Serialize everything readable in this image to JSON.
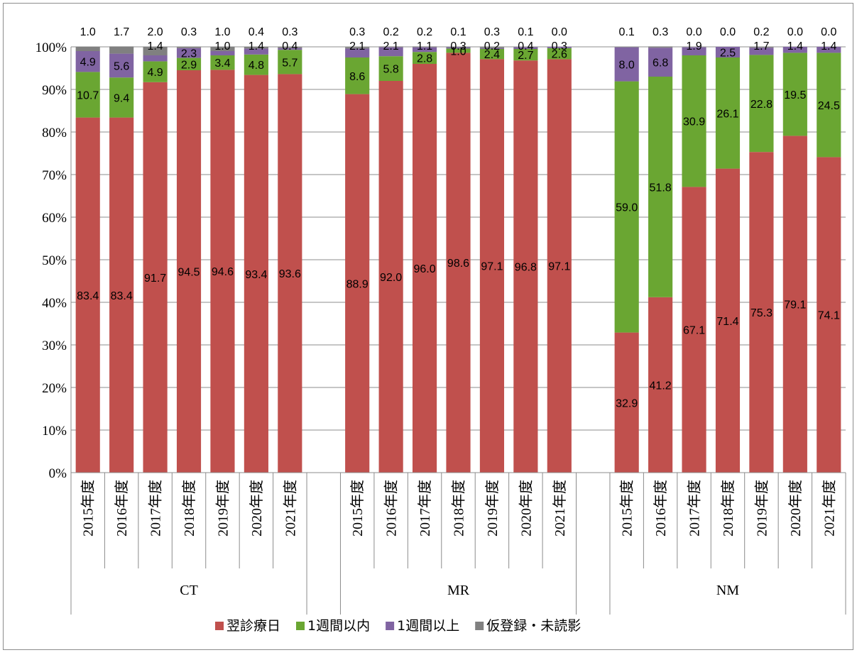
{
  "chart_data": {
    "type": "bar",
    "stacked": true,
    "percent": true,
    "title": "",
    "xlabel": "",
    "ylabel": "",
    "ylim": [
      0,
      100
    ],
    "y_ticks": [
      "0%",
      "10%",
      "20%",
      "30%",
      "40%",
      "50%",
      "60%",
      "70%",
      "80%",
      "90%",
      "100%"
    ],
    "grid": true,
    "legend_position": "bottom",
    "groups": [
      "CT",
      "MR",
      "NM"
    ],
    "categories": [
      "2015年度",
      "2016年度",
      "2017年度",
      "2018年度",
      "2019年度",
      "2020年度",
      "2021年度"
    ],
    "series": [
      {
        "name": "翌診療日",
        "color": "#c0504d",
        "values": {
          "CT": [
            83.4,
            83.4,
            91.7,
            94.5,
            94.6,
            93.4,
            93.6
          ],
          "MR": [
            88.9,
            92.0,
            96.0,
            98.6,
            97.1,
            96.8,
            97.1
          ],
          "NM": [
            32.9,
            41.2,
            67.1,
            71.4,
            75.3,
            79.1,
            74.1
          ]
        }
      },
      {
        "name": "1週間以内",
        "color": "#6aa632",
        "values": {
          "CT": [
            10.7,
            9.4,
            4.9,
            2.9,
            3.4,
            4.8,
            5.7
          ],
          "MR": [
            8.6,
            5.8,
            2.8,
            1.0,
            2.4,
            2.7,
            2.6
          ],
          "NM": [
            59.0,
            51.8,
            30.9,
            26.1,
            22.8,
            19.5,
            24.5
          ]
        }
      },
      {
        "name": "1週間以上",
        "color": "#8064a2",
        "values": {
          "CT": [
            4.9,
            5.6,
            1.4,
            2.3,
            1.0,
            1.4,
            0.4
          ],
          "MR": [
            2.1,
            2.1,
            1.1,
            0.3,
            0.2,
            0.4,
            0.3
          ],
          "NM": [
            8.0,
            6.8,
            1.9,
            2.5,
            1.7,
            1.4,
            1.4
          ]
        }
      },
      {
        "name": "仮登録・未読影",
        "color": "#808080",
        "values": {
          "CT": [
            1.0,
            1.7,
            2.0,
            0.3,
            1.0,
            0.4,
            0.3
          ],
          "MR": [
            0.3,
            0.2,
            0.2,
            0.1,
            0.3,
            0.1,
            0.0
          ],
          "NM": [
            0.1,
            0.3,
            0.0,
            0.0,
            0.2,
            0.0,
            0.0
          ]
        }
      }
    ]
  }
}
